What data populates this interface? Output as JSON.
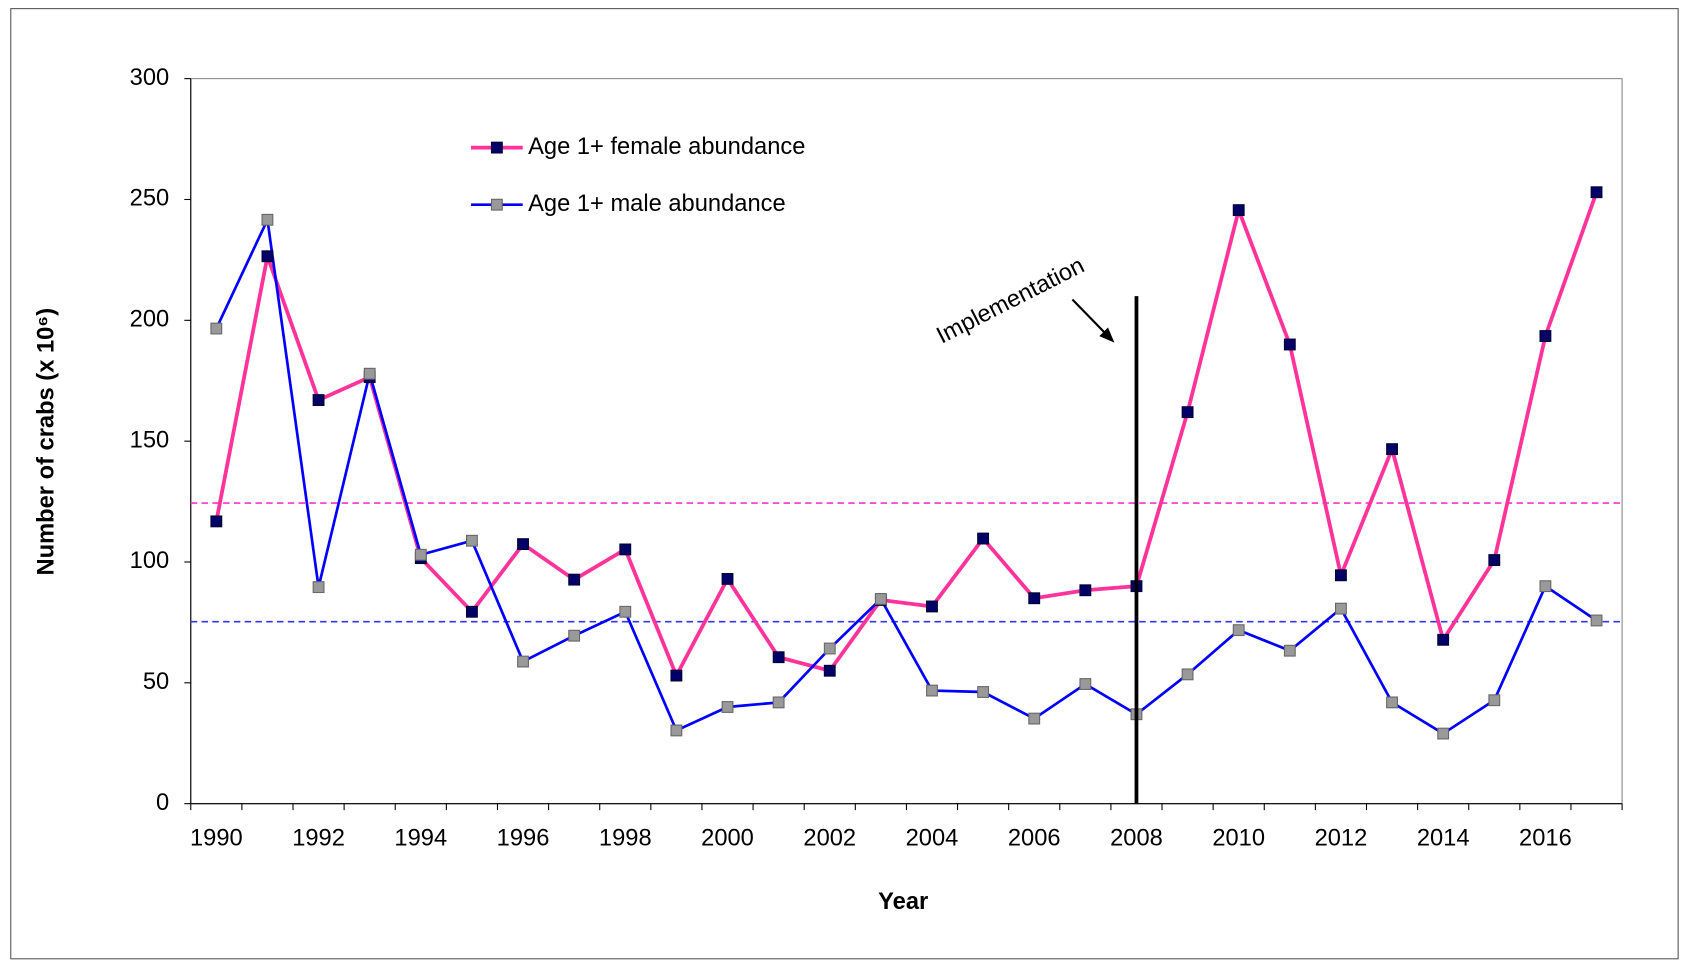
{
  "chart_data": {
    "type": "line",
    "x_label": "Year",
    "y_label": "Number of crabs (x 10⁶)",
    "categories": [
      "1990",
      null,
      "1992",
      null,
      "1994",
      null,
      "1996",
      null,
      "1998",
      null,
      "2000",
      null,
      "2002",
      null,
      "2004",
      null,
      "2006",
      null,
      "2008",
      null,
      "2010",
      null,
      "2012",
      null,
      "2014",
      null,
      "2016",
      null
    ],
    "series": [
      {
        "name": "Age 1+ female abundance",
        "color": "#ff3399",
        "marker_color": "#000066",
        "values": [
          116.8,
          226.5,
          167,
          176.5,
          101.6,
          79.4,
          107.4,
          92.7,
          105.2,
          53,
          93,
          60.6,
          55,
          84.3,
          81.6,
          109.7,
          85,
          88.3,
          90,
          162,
          245.6,
          190,
          94.5,
          146.7,
          67.8,
          100.8,
          193.5,
          253
        ]
      },
      {
        "name": "Age 1+ male abundance",
        "color": "#0000ff",
        "marker_color": "#999999",
        "values": [
          196.6,
          241.6,
          89.6,
          177.9,
          103,
          108.8,
          58.8,
          69.5,
          79.4,
          30.3,
          40,
          41.9,
          64.2,
          84.7,
          46.8,
          46.2,
          35.2,
          49.5,
          37,
          53.5,
          71.8,
          63.3,
          80.7,
          41.9,
          29,
          42.8,
          90,
          75.8
        ]
      }
    ],
    "reference_lines": [
      {
        "value": 124.4,
        "color": "#ff33cc"
      },
      {
        "value": 75.3,
        "color": "#3333ff"
      }
    ],
    "vline": {
      "x": "2008",
      "ymax": 210,
      "text": "Implementation"
    },
    "ylim": [
      0,
      300
    ],
    "yticks": [
      0,
      50,
      100,
      150,
      200,
      250,
      300
    ],
    "legend": "top-left",
    "grid": false
  }
}
